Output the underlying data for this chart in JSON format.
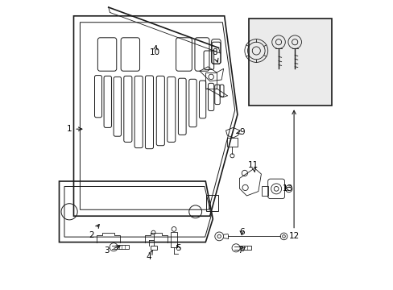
{
  "bg_color": "#ffffff",
  "line_color": "#1a1a1a",
  "label_color": "#000000",
  "figsize": [
    4.89,
    3.6
  ],
  "dpi": 100,
  "parts_info": [
    [
      1,
      0.06,
      0.555,
      0.115,
      0.555
    ],
    [
      2,
      0.135,
      0.19,
      0.17,
      0.235
    ],
    [
      3,
      0.19,
      0.135,
      0.245,
      0.155
    ],
    [
      4,
      0.335,
      0.115,
      0.348,
      0.138
    ],
    [
      5,
      0.435,
      0.145,
      0.428,
      0.165
    ],
    [
      6,
      0.655,
      0.2,
      0.655,
      0.18
    ],
    [
      7,
      0.65,
      0.135,
      0.668,
      0.148
    ],
    [
      8,
      0.56,
      0.82,
      0.575,
      0.775
    ],
    [
      9,
      0.655,
      0.545,
      0.635,
      0.54
    ],
    [
      10,
      0.355,
      0.82,
      0.36,
      0.845
    ],
    [
      11,
      0.695,
      0.43,
      0.7,
      0.405
    ],
    [
      12,
      0.835,
      0.185,
      0.835,
      0.63
    ],
    [
      13,
      0.815,
      0.35,
      0.795,
      0.355
    ]
  ]
}
